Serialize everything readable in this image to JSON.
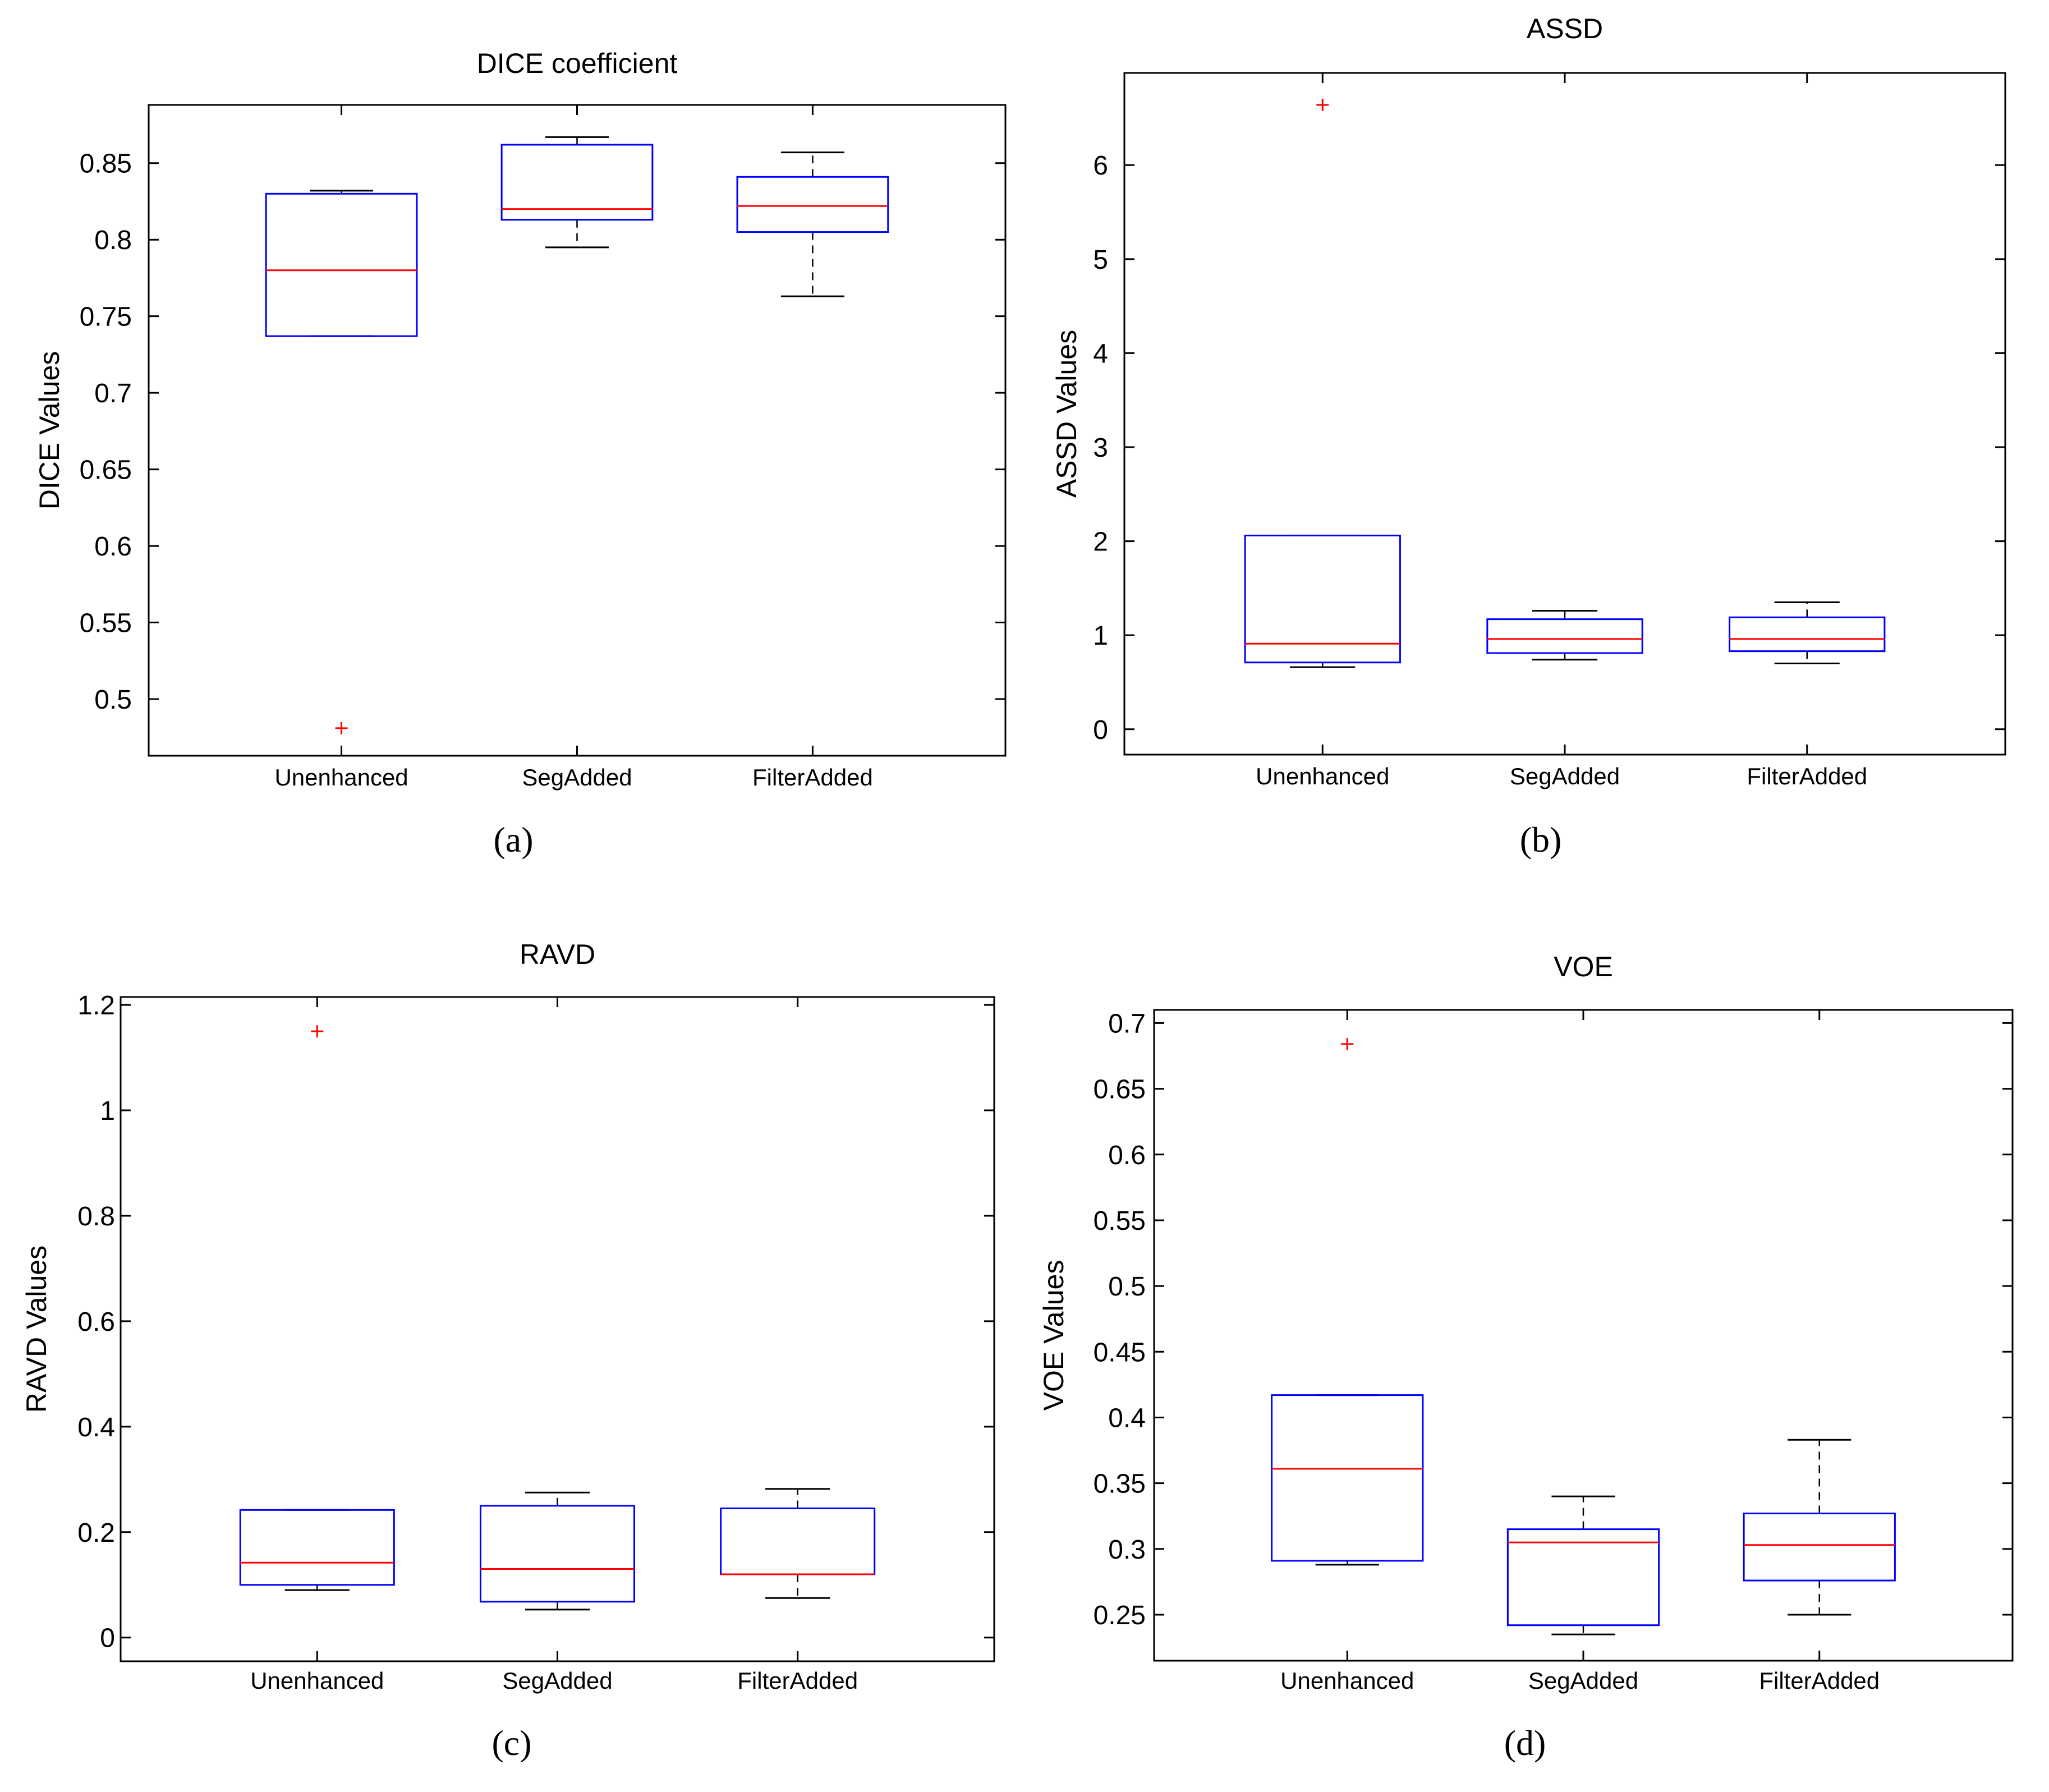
{
  "chart_data": [
    {
      "type": "box",
      "panel_label": "a",
      "title": "DICE coefficient",
      "xlabel": "",
      "ylabel": "DICE Values",
      "categories": [
        "Unenhanced",
        "SegAdded",
        "FilterAdded"
      ],
      "ylim": [
        0.463,
        0.888
      ],
      "yticks": [
        0.5,
        0.55,
        0.6,
        0.65,
        0.7,
        0.75,
        0.8,
        0.85
      ],
      "ytick_labels": [
        "0.5",
        "0.55",
        "0.6",
        "0.65",
        "0.7",
        "0.75",
        "0.8",
        "0.85"
      ],
      "boxes": [
        {
          "whisker_low": 0.737,
          "q1": 0.737,
          "median": 0.78,
          "q3": 0.83,
          "whisker_high": 0.832,
          "outliers": [
            0.481
          ]
        },
        {
          "whisker_low": 0.795,
          "q1": 0.813,
          "median": 0.82,
          "q3": 0.862,
          "whisker_high": 0.867,
          "outliers": []
        },
        {
          "whisker_low": 0.763,
          "q1": 0.805,
          "median": 0.822,
          "q3": 0.841,
          "whisker_high": 0.857,
          "outliers": []
        }
      ]
    },
    {
      "type": "box",
      "panel_label": "b",
      "title": "ASSD",
      "xlabel": "",
      "ylabel": "ASSD Values",
      "categories": [
        "Unenhanced",
        "SegAdded",
        "FilterAdded"
      ],
      "ylim": [
        -0.27,
        6.98
      ],
      "yticks": [
        0,
        1,
        2,
        3,
        4,
        5,
        6
      ],
      "ytick_labels": [
        "0",
        "1",
        "2",
        "3",
        "4",
        "5",
        "6"
      ],
      "boxes": [
        {
          "whisker_low": 0.66,
          "q1": 0.71,
          "median": 0.91,
          "q3": 2.06,
          "whisker_high": 2.06,
          "outliers": [
            6.64
          ]
        },
        {
          "whisker_low": 0.74,
          "q1": 0.81,
          "median": 0.96,
          "q3": 1.17,
          "whisker_high": 1.26,
          "outliers": []
        },
        {
          "whisker_low": 0.7,
          "q1": 0.83,
          "median": 0.96,
          "q3": 1.19,
          "whisker_high": 1.35,
          "outliers": []
        }
      ]
    },
    {
      "type": "box",
      "panel_label": "c",
      "title": "RAVD",
      "xlabel": "",
      "ylabel": "RAVD Values",
      "categories": [
        "Unenhanced",
        "SegAdded",
        "FilterAdded"
      ],
      "ylim": [
        -0.045,
        1.215
      ],
      "yticks": [
        0,
        0.2,
        0.4,
        0.6,
        0.8,
        1,
        1.2
      ],
      "ytick_labels": [
        "0",
        "0.2",
        "0.4",
        "0.6",
        "0.8",
        "1",
        "1.2"
      ],
      "boxes": [
        {
          "whisker_low": 0.09,
          "q1": 0.1,
          "median": 0.142,
          "q3": 0.242,
          "whisker_high": 0.242,
          "outliers": [
            1.15
          ]
        },
        {
          "whisker_low": 0.053,
          "q1": 0.068,
          "median": 0.13,
          "q3": 0.25,
          "whisker_high": 0.275,
          "outliers": []
        },
        {
          "whisker_low": 0.075,
          "q1": 0.12,
          "median": 0.12,
          "q3": 0.245,
          "whisker_high": 0.282,
          "outliers": []
        }
      ]
    },
    {
      "type": "box",
      "panel_label": "d",
      "title": "VOE",
      "xlabel": "",
      "ylabel": "VOE Values",
      "categories": [
        "Unenhanced",
        "SegAdded",
        "FilterAdded"
      ],
      "ylim": [
        0.215,
        0.71
      ],
      "yticks": [
        0.25,
        0.3,
        0.35,
        0.4,
        0.45,
        0.5,
        0.55,
        0.6,
        0.65,
        0.7
      ],
      "ytick_labels": [
        "0.25",
        "0.3",
        "0.35",
        "0.4",
        "0.45",
        "0.5",
        "0.55",
        "0.6",
        "0.65",
        "0.7"
      ],
      "boxes": [
        {
          "whisker_low": 0.288,
          "q1": 0.291,
          "median": 0.361,
          "q3": 0.417,
          "whisker_high": 0.417,
          "outliers": [
            0.684
          ]
        },
        {
          "whisker_low": 0.235,
          "q1": 0.242,
          "median": 0.305,
          "q3": 0.315,
          "whisker_high": 0.34,
          "outliers": []
        },
        {
          "whisker_low": 0.25,
          "q1": 0.276,
          "median": 0.303,
          "q3": 0.327,
          "whisker_high": 0.383,
          "outliers": []
        }
      ]
    }
  ],
  "captions": [
    "(a)",
    "(b)",
    "(c)",
    "(d)"
  ],
  "colors": {
    "box": "#0000ff",
    "median": "#ff0000",
    "outlier": "#ff0000",
    "whisker": "#000000",
    "axes": "#000000",
    "background": "#ffffff"
  }
}
